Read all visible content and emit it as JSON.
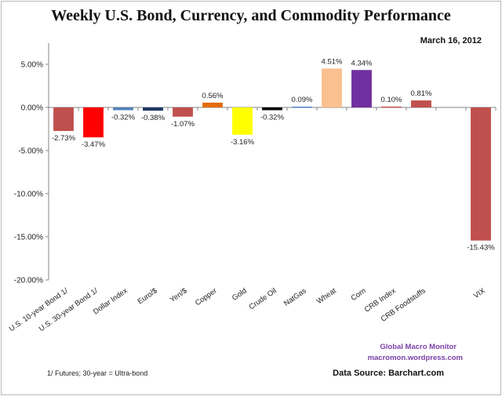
{
  "chart_data": {
    "type": "bar",
    "title": "Weekly U.S. Bond, Currency, and Commodity Performance",
    "subtitle": "March 16, 2012",
    "xlabel": "",
    "ylabel": "",
    "ylim": [
      -20,
      5
    ],
    "yticks": [
      5,
      0,
      -5,
      -10,
      -15,
      -20
    ],
    "ytick_labels": [
      "5.00%",
      "0.00%",
      "-5.00%",
      "-10.00%",
      "-15.00%",
      "-20.00%"
    ],
    "grid": false,
    "legend": "none",
    "categories": [
      "U.S. 10-year Bond 1/",
      "U.S. 30-year Bond 1/",
      "Dollar Index",
      "Euro/$",
      "Yen/$",
      "Copper",
      "Gold",
      "Crude Oil",
      "NatGas",
      "Wheat",
      "Corn",
      "CRB Index",
      "CRB Foodstuffs",
      "VIX"
    ],
    "values": [
      -2.73,
      -3.47,
      -0.32,
      -0.38,
      -1.07,
      0.56,
      -3.16,
      -0.32,
      0.09,
      4.51,
      4.34,
      0.1,
      0.81,
      -15.43
    ],
    "data_labels": [
      "-2.73%",
      "-3.47%",
      "-0.32%",
      "-0.38%",
      "-1.07%",
      "0.56%",
      "-3.16%",
      "-0.32%",
      "0.09%",
      "4.51%",
      "4.34%",
      "0.10%",
      "0.81%",
      "-15.43%"
    ],
    "colors": [
      "#c0504d",
      "#ff0000",
      "#4f81bd",
      "#1f3864",
      "#c0504d",
      "#e46c0a",
      "#ffff00",
      "#000000",
      "#4f81bd",
      "#fac090",
      "#7030a0",
      "#c0504d",
      "#c0504d",
      "#c0504d"
    ]
  },
  "annotations": {
    "footnote": "1/ Futures; 30-year = Ultra-bond",
    "brand_name": "Global Macro Monitor",
    "brand_url": "macromon.wordpress.com",
    "source": "Data Source:  Barchart.com"
  }
}
